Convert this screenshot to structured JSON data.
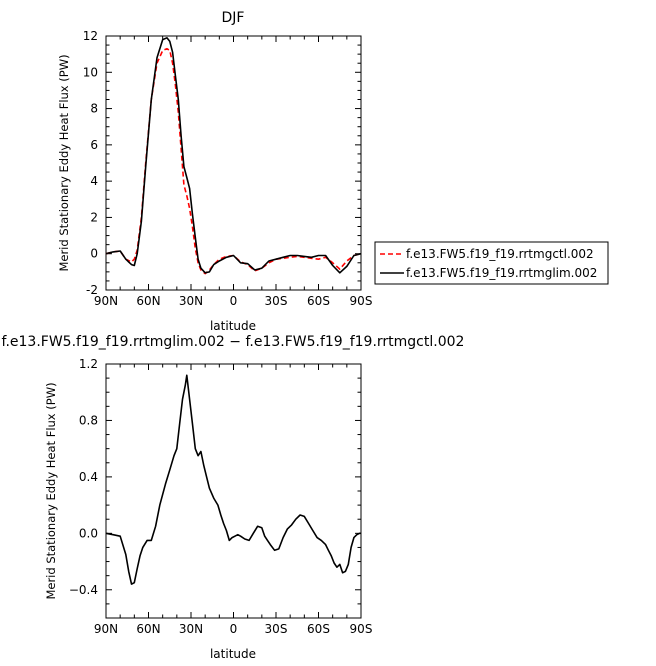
{
  "chart_data": [
    {
      "type": "line",
      "title": "DJF",
      "xlabel": "latitude",
      "ylabel": "Merid Stationary Eddy Heat Flux (PW)",
      "xlim": [
        -90,
        90
      ],
      "ylim": [
        -2,
        12
      ],
      "x_tick_labels": [
        "90N",
        "60N",
        "30N",
        "0",
        "30S",
        "60S",
        "90S"
      ],
      "y_tick_labels": [
        "-2",
        "0",
        "2",
        "4",
        "6",
        "8",
        "10",
        "12"
      ],
      "legend_position": "right",
      "series": [
        {
          "name": "f.e13.FW5.f19_f19.rrtmgctl.002",
          "color": "#ff0000",
          "dash": "dashed",
          "x": [
            -90,
            -85,
            -80,
            -76,
            -72,
            -70,
            -68,
            -65,
            -62,
            -58,
            -54,
            -50,
            -47,
            -45,
            -43,
            -41,
            -39,
            -37,
            -35,
            -33,
            -31,
            -29,
            -27,
            -25,
            -23,
            -20,
            -17,
            -14,
            -10,
            -5,
            0,
            5,
            10,
            15,
            20,
            25,
            30,
            35,
            40,
            45,
            50,
            55,
            60,
            65,
            70,
            75,
            80,
            85,
            90
          ],
          "y": [
            0.0,
            0.1,
            0.15,
            -0.3,
            -0.45,
            -0.3,
            0.2,
            2.0,
            5.0,
            8.5,
            10.5,
            11.2,
            11.3,
            11.2,
            10.5,
            9.3,
            7.8,
            5.8,
            3.8,
            3.2,
            2.5,
            1.5,
            0.3,
            -0.5,
            -0.9,
            -1.1,
            -0.9,
            -0.6,
            -0.3,
            -0.15,
            -0.1,
            -0.45,
            -0.6,
            -0.95,
            -0.8,
            -0.5,
            -0.3,
            -0.25,
            -0.2,
            -0.15,
            -0.2,
            -0.25,
            -0.3,
            -0.2,
            -0.5,
            -0.85,
            -0.4,
            -0.1,
            0.0
          ]
        },
        {
          "name": "f.e13.FW5.f19_f19.rrtmglim.002",
          "color": "#000000",
          "dash": "solid",
          "x": [
            -90,
            -85,
            -80,
            -76,
            -72,
            -70,
            -68,
            -65,
            -62,
            -58,
            -54,
            -50,
            -47,
            -45,
            -43,
            -41,
            -39,
            -37,
            -35,
            -33,
            -31,
            -29,
            -27,
            -25,
            -23,
            -20,
            -17,
            -14,
            -10,
            -5,
            0,
            5,
            10,
            15,
            20,
            25,
            30,
            35,
            40,
            45,
            50,
            55,
            60,
            65,
            70,
            75,
            80,
            85,
            90
          ],
          "y": [
            0.0,
            0.1,
            0.15,
            -0.3,
            -0.6,
            -0.65,
            0.0,
            1.8,
            4.8,
            8.5,
            10.8,
            11.8,
            11.9,
            11.7,
            11.1,
            9.8,
            8.5,
            6.5,
            4.8,
            4.2,
            3.6,
            2.2,
            0.9,
            -0.3,
            -0.8,
            -1.05,
            -1.0,
            -0.6,
            -0.4,
            -0.2,
            -0.1,
            -0.5,
            -0.55,
            -0.9,
            -0.8,
            -0.4,
            -0.3,
            -0.2,
            -0.1,
            -0.1,
            -0.15,
            -0.2,
            -0.1,
            -0.1,
            -0.65,
            -1.05,
            -0.7,
            -0.1,
            0.0
          ]
        }
      ]
    },
    {
      "type": "line",
      "title": "f.e13.FW5.f19_f19.rrtmglim.002 − f.e13.FW5.f19_f19.rrtmgctl.002",
      "xlabel": "latitude",
      "ylabel": "Merid Stationary Eddy Heat Flux (PW)",
      "xlim": [
        -90,
        90
      ],
      "ylim": [
        -0.6,
        1.2
      ],
      "x_tick_labels": [
        "90N",
        "60N",
        "30N",
        "0",
        "30S",
        "60S",
        "90S"
      ],
      "y_tick_labels": [
        "−0.4",
        "0.0",
        "0.4",
        "0.8",
        "1.2"
      ],
      "series": [
        {
          "color": "#000000",
          "x": [
            -90,
            -85,
            -80,
            -76,
            -74,
            -72,
            -70,
            -68,
            -66,
            -64,
            -61,
            -58,
            -55,
            -52,
            -48,
            -45,
            -42,
            -40,
            -38,
            -36,
            -34,
            -33,
            -31,
            -29,
            -27,
            -25,
            -23,
            -21,
            -19,
            -17,
            -14,
            -11,
            -9,
            -7,
            -5,
            -3,
            -1,
            1,
            3,
            5,
            8,
            11,
            14,
            17,
            20,
            22,
            24,
            26,
            29,
            32,
            35,
            38,
            41,
            44,
            47,
            50,
            53,
            56,
            59,
            62,
            65,
            67,
            69,
            71,
            73,
            75,
            77,
            79,
            81,
            83,
            85,
            87,
            89,
            90
          ],
          "y": [
            0.0,
            -0.01,
            -0.02,
            -0.15,
            -0.27,
            -0.36,
            -0.35,
            -0.25,
            -0.16,
            -0.1,
            -0.05,
            -0.05,
            0.05,
            0.2,
            0.35,
            0.45,
            0.55,
            0.6,
            0.78,
            0.95,
            1.05,
            1.12,
            0.95,
            0.78,
            0.6,
            0.55,
            0.58,
            0.48,
            0.4,
            0.32,
            0.25,
            0.2,
            0.13,
            0.07,
            0.02,
            -0.05,
            -0.03,
            -0.02,
            -0.01,
            -0.02,
            -0.04,
            -0.05,
            0.0,
            0.05,
            0.04,
            -0.02,
            -0.05,
            -0.08,
            -0.12,
            -0.11,
            -0.03,
            0.03,
            0.06,
            0.1,
            0.13,
            0.12,
            0.07,
            0.02,
            -0.03,
            -0.05,
            -0.08,
            -0.12,
            -0.16,
            -0.21,
            -0.24,
            -0.22,
            -0.28,
            -0.27,
            -0.22,
            -0.1,
            -0.03,
            -0.01,
            0.0,
            0.0
          ]
        }
      ]
    }
  ]
}
